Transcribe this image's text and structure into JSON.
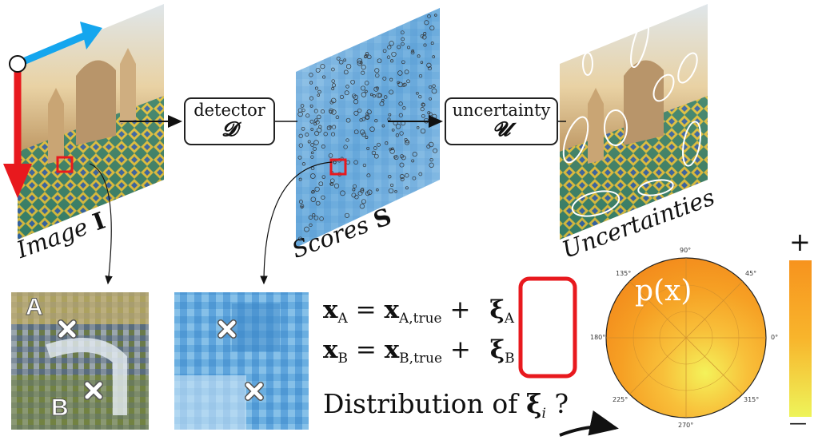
{
  "labels": {
    "image": "Image",
    "image_symbol": "I",
    "scores": "Scores",
    "scores_symbol": "S",
    "uncertainties": "Uncertainties"
  },
  "boxes": {
    "detector": {
      "text": "detector",
      "symbol": "𝓓"
    },
    "uncertainty": {
      "text": "uncertainty",
      "symbol": "𝓤"
    }
  },
  "patch_labels": {
    "a": "A",
    "b": "B"
  },
  "equations": {
    "line_a": {
      "lhs": "x",
      "lhs_sub": "A",
      "eq": "=",
      "rhs": "x",
      "rhs_sub": "A,true",
      "plus": "+",
      "xi": "ξ",
      "xi_sub": "A"
    },
    "line_b": {
      "lhs": "x",
      "lhs_sub": "B",
      "eq": "=",
      "rhs": "x",
      "rhs_sub": "B,true",
      "plus": "+",
      "xi": "ξ",
      "xi_sub": "B"
    },
    "question": {
      "text": "Distribution of",
      "xi": "ξ",
      "sub": "i",
      "mark": "?"
    }
  },
  "polar": {
    "label": "p(x)",
    "angles": [
      "90°",
      "45°",
      "0°",
      "315°",
      "270°",
      "225°",
      "180°",
      "135°"
    ]
  },
  "colorbar": {
    "top": "+",
    "bottom": "—"
  },
  "colors": {
    "red": "#e8191e",
    "blue": "#15a6ee",
    "score_blue": "#7fb8e2",
    "orange": "#f7931e",
    "yellow": "#e6f05a"
  }
}
